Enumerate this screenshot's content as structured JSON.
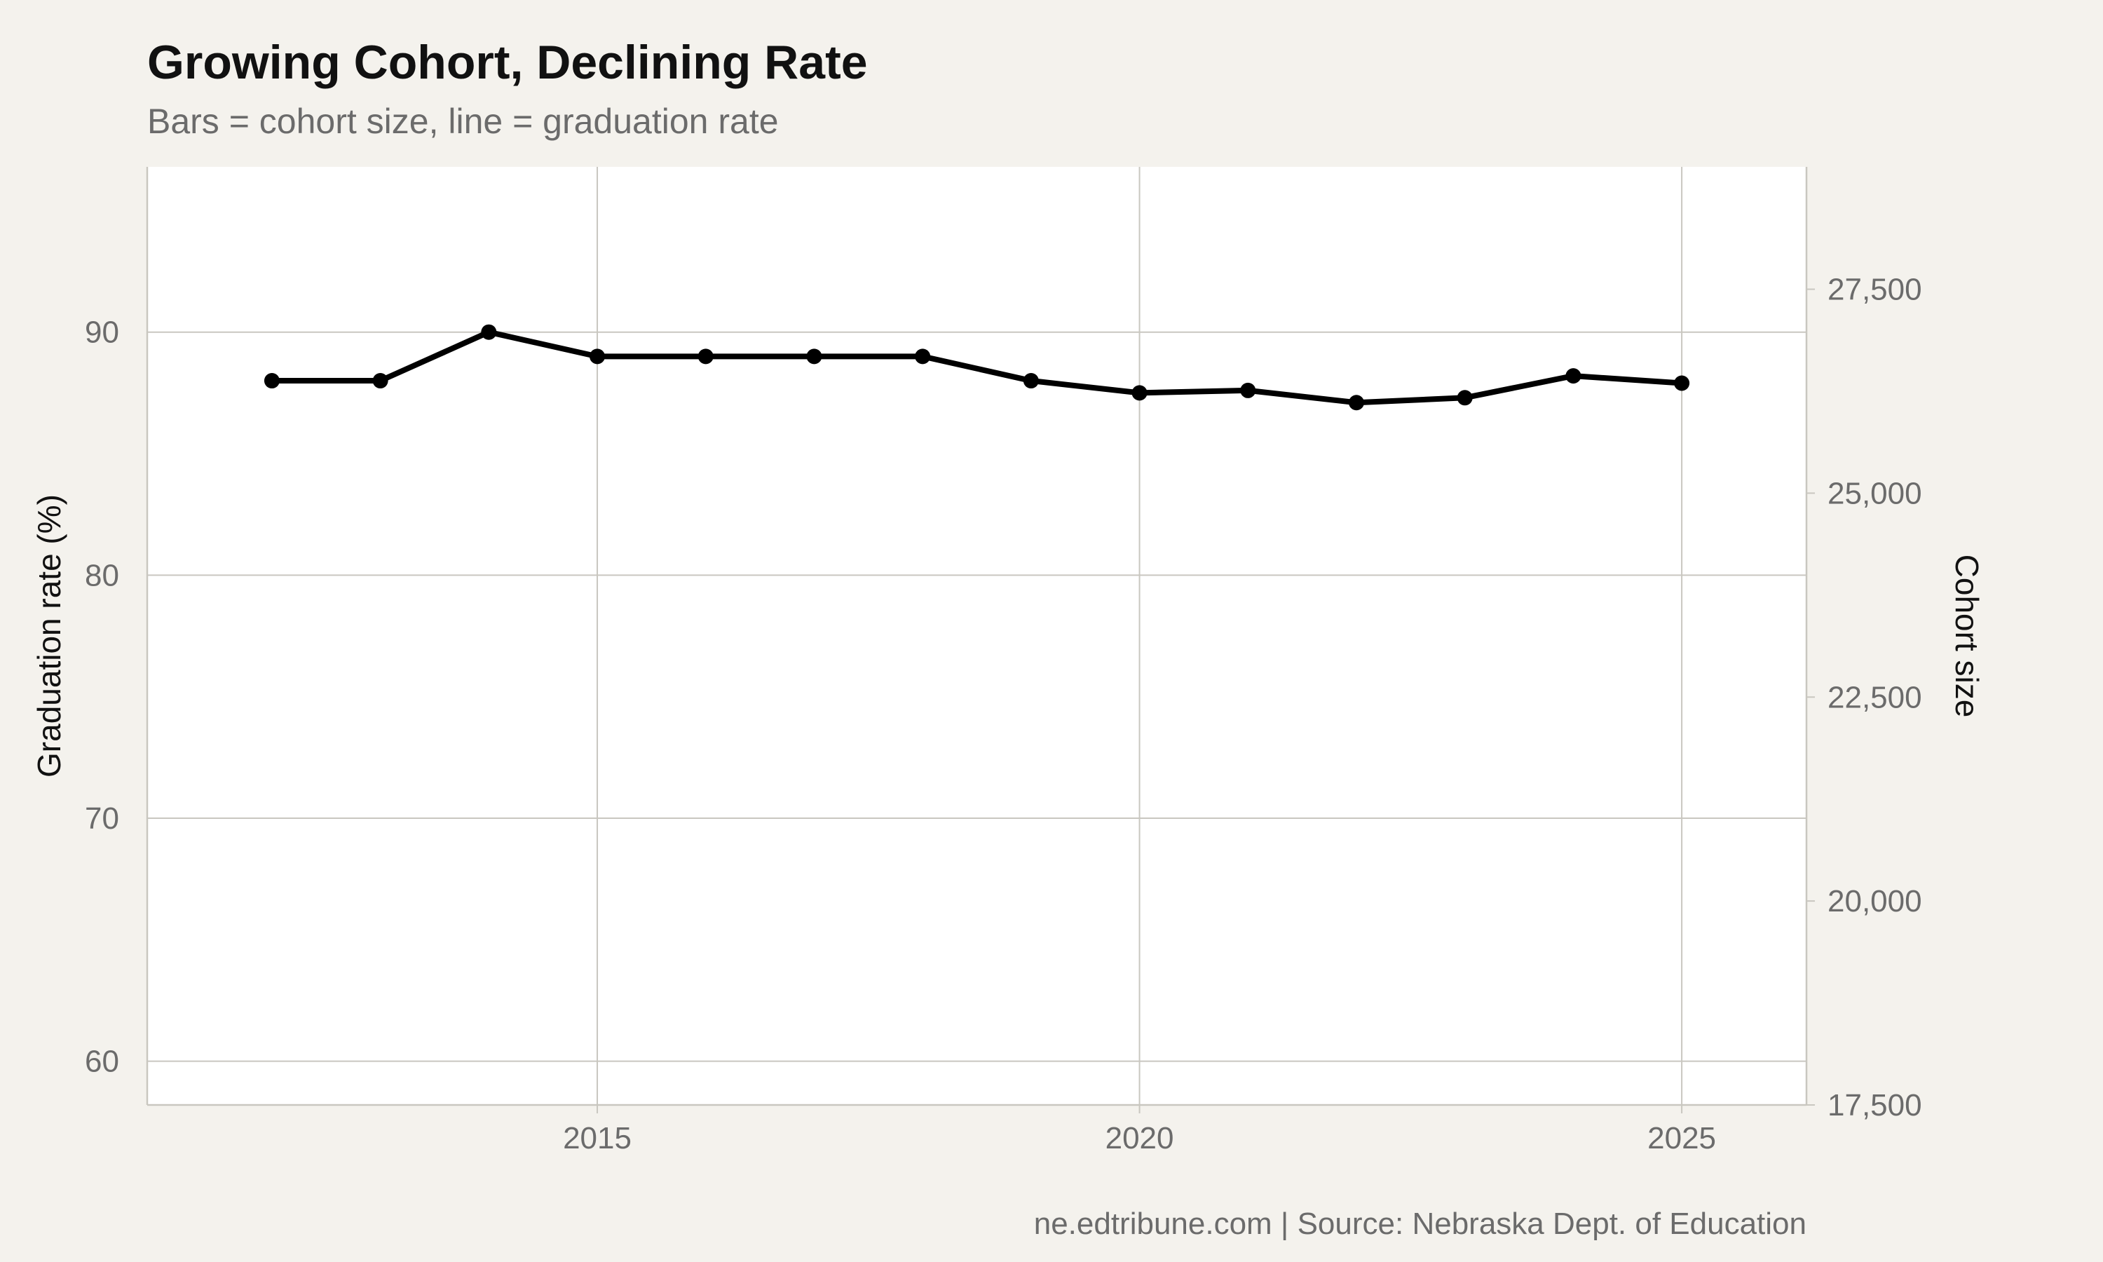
{
  "chart_data": {
    "type": "line",
    "title": "Growing Cohort, Declining Rate",
    "subtitle": "Bars = cohort size, line = graduation rate",
    "caption": "ne.edtribune.com | Source: Nebraska Dept. of Education",
    "ylabel": "Graduation rate (%)",
    "y2label": "Cohort size",
    "x": [
      2012,
      2013,
      2014,
      2015,
      2016,
      2017,
      2018,
      2019,
      2020,
      2021,
      2022,
      2023,
      2024,
      2025
    ],
    "series": [
      {
        "values": [
          88.0,
          88.0,
          90.0,
          89.0,
          89.0,
          89.0,
          89.0,
          88.0,
          87.5,
          87.6,
          87.1,
          87.3,
          88.2,
          87.9
        ]
      }
    ],
    "xlim": [
      2010.85,
      2026.15
    ],
    "ylim": [
      58.2,
      96.8
    ],
    "y2lim": [
      17500,
      29000
    ],
    "x_ticks": [
      2015,
      2020,
      2025
    ],
    "x_tick_labels": [
      "2015",
      "2020",
      "2025"
    ],
    "y_ticks": [
      60,
      70,
      80,
      90
    ],
    "y_tick_labels": [
      "60",
      "70",
      "80",
      "90"
    ],
    "y2_ticks": [
      17500,
      20000,
      22500,
      25000,
      27500
    ],
    "y2_tick_labels": [
      "17,500",
      "20,000",
      "22,500",
      "25,000",
      "27,500"
    ],
    "grid": true,
    "colors": {
      "background": "#f4f2ed",
      "panel": "#ffffff",
      "grid": "#c9c7c0",
      "line": "#000000",
      "tick_text": "#6b6b6b",
      "title_text": "#111111"
    }
  }
}
